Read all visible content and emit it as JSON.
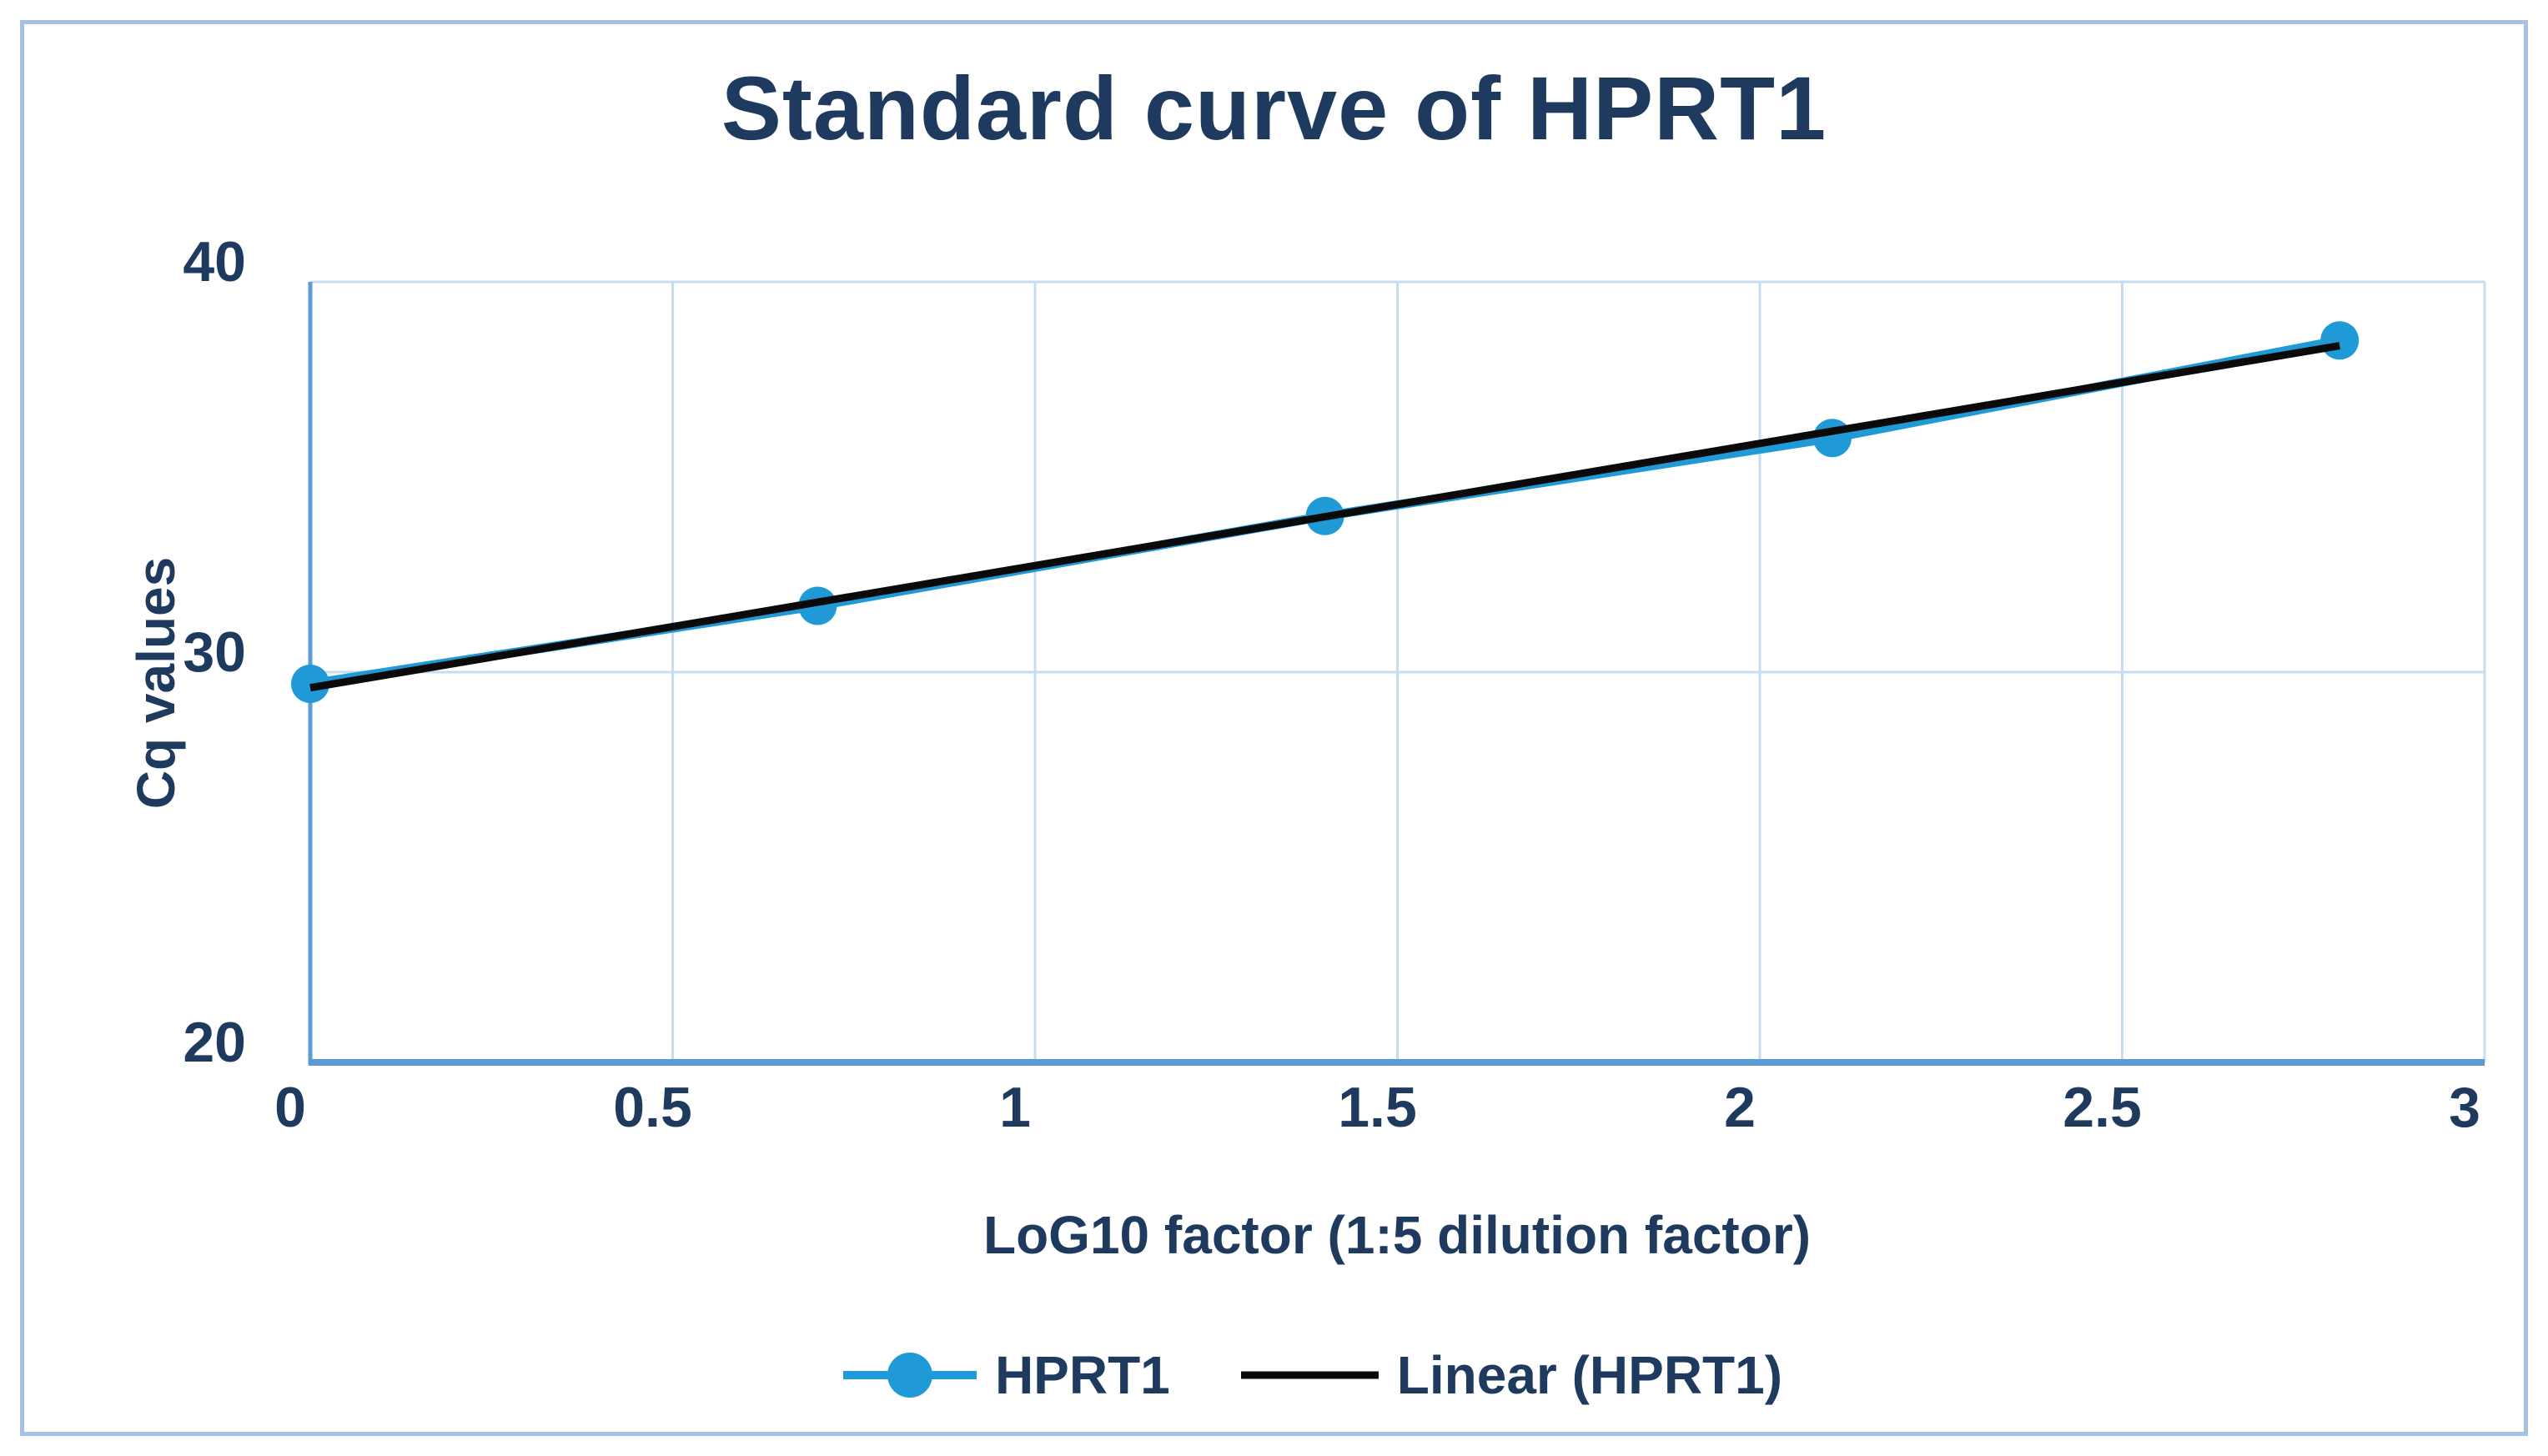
{
  "chart_data": {
    "type": "line",
    "title": "Standard curve of HPRT1",
    "xlabel": "LoG10 factor (1:5 dilution factor)",
    "ylabel": "Cq values",
    "x": [
      0,
      0.7,
      1.4,
      2.1,
      2.8
    ],
    "series": [
      {
        "name": "HPRT1",
        "kind": "line_with_markers",
        "color": "#1f9ad6",
        "values": [
          29.7,
          31.7,
          34.0,
          36.0,
          38.5
        ]
      },
      {
        "name": "Linear (HPRT1)",
        "kind": "linear_trendline",
        "color": "#0a0a0a",
        "slope": 3.13,
        "intercept": 29.6
      }
    ],
    "xlim": [
      0,
      3
    ],
    "ylim": [
      20,
      40
    ],
    "xticks": [
      0,
      0.5,
      1,
      1.5,
      2,
      2.5,
      3
    ],
    "xtick_labels": [
      "0",
      "0.5",
      "1",
      "1.5",
      "2",
      "2.5",
      "3"
    ],
    "yticks": [
      20,
      30,
      40
    ],
    "ytick_labels": [
      "20",
      "30",
      "40"
    ],
    "grid": true,
    "legend_position": "bottom",
    "colors": {
      "text": "#1e3a5f",
      "gridline": "#c7dcf0",
      "axis_line": "#5b9bd5",
      "frame_border": "#a5c2e6",
      "background": "#ffffff"
    }
  }
}
